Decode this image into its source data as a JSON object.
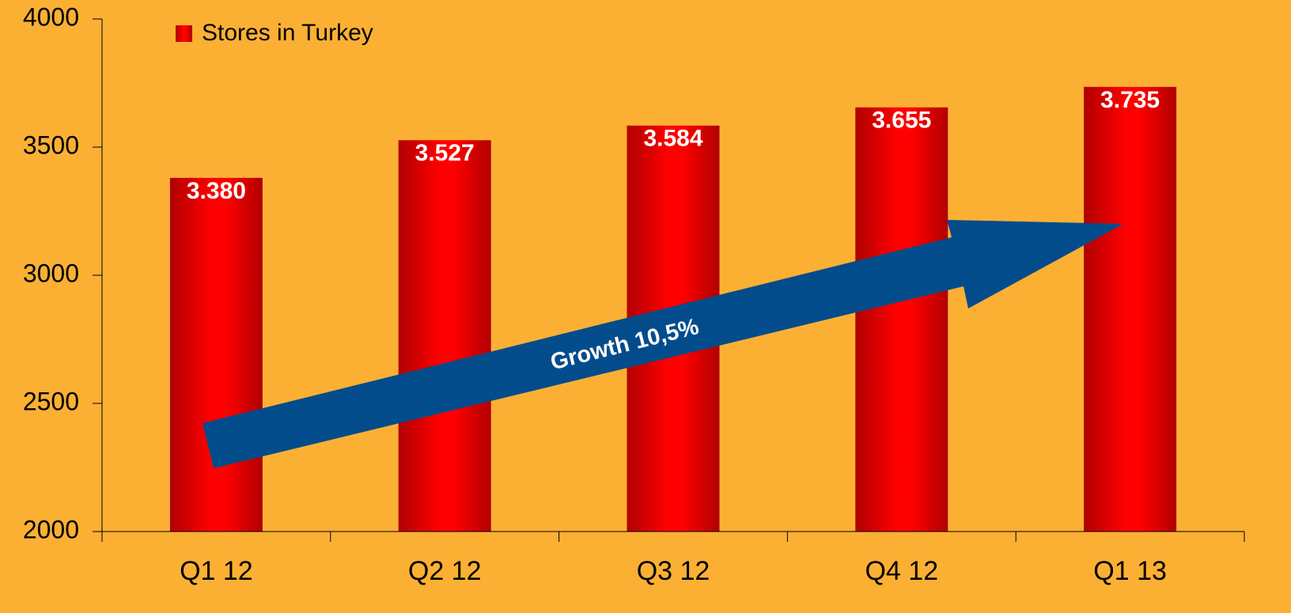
{
  "chart_data": {
    "type": "bar",
    "categories": [
      "Q1 12",
      "Q2 12",
      "Q3 12",
      "Q4 12",
      "Q1 13"
    ],
    "series": [
      {
        "name": "Stores in Turkey",
        "color": "#ff0000",
        "values": [
          3380,
          3527,
          3584,
          3655,
          3735
        ],
        "value_labels": [
          "3.380",
          "3.527",
          "3.584",
          "3.655",
          "3.735"
        ]
      }
    ],
    "ylim": [
      2000,
      4000
    ],
    "yticks": [
      2000,
      2500,
      3000,
      3500,
      4000
    ],
    "annotation": "Growth 10,5%"
  }
}
